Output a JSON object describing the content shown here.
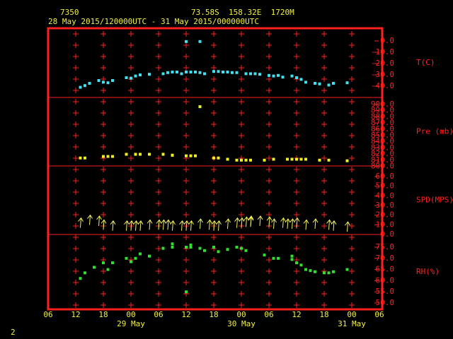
{
  "header": {
    "station": "7350",
    "location": "73.58S  158.32E  1720M",
    "period": "28 May 2015/120000UTC - 31 May 2015/000000UTC"
  },
  "page_number": "2",
  "chart_data": [
    {
      "type": "scatter",
      "ylabel": "T(C)",
      "color": "#40e0f0",
      "x": [
        13,
        14,
        15,
        17,
        18,
        19,
        20,
        23,
        24,
        25,
        26,
        28,
        31,
        32,
        33,
        34,
        35,
        36,
        36,
        37,
        38,
        39,
        39,
        40,
        42,
        43,
        44,
        45,
        46,
        47,
        49,
        50,
        51,
        52,
        54,
        55,
        56,
        57,
        59,
        60,
        61,
        62,
        64,
        65,
        67,
        68,
        71
      ],
      "values": [
        -41,
        -39.5,
        -37.5,
        -35,
        -36.5,
        -37,
        -35,
        -32.5,
        -33,
        -31,
        -30,
        -29.5,
        -29,
        -28,
        -27.5,
        -27.5,
        -29,
        -27.5,
        -0.5,
        -27.5,
        -27.5,
        -0.5,
        -28,
        -29,
        -27,
        -27,
        -27.5,
        -27.5,
        -28,
        -28,
        -29,
        -29,
        -29,
        -29.5,
        -30.5,
        -31,
        -30.5,
        -32,
        -31,
        -32.5,
        -34,
        -36.5,
        -37.5,
        -38,
        -39,
        -37.5,
        -37
      ],
      "ylim": [
        -50,
        11.25
      ],
      "yticks": [
        {
          "value": 0,
          "label": "0.0"
        },
        {
          "value": -10,
          "label": "-10.0"
        },
        {
          "value": -20,
          "label": "-20.0"
        },
        {
          "value": -30,
          "label": "-30.0"
        },
        {
          "value": -40,
          "label": "-40.0"
        }
      ]
    },
    {
      "type": "scatter",
      "ylabel": "Pre (mb)",
      "color": "#f0f020",
      "x": [
        13,
        14,
        18,
        19,
        20,
        23,
        25,
        25,
        26,
        28,
        31,
        31,
        33,
        33,
        36,
        37,
        38,
        39,
        42,
        43,
        45,
        47,
        48,
        49,
        50,
        53,
        55,
        58,
        59,
        60,
        61,
        62,
        65,
        67,
        71
      ],
      "values": [
        813.5,
        813.5,
        816,
        816,
        816,
        819.5,
        819.5,
        819.5,
        819.5,
        819.5,
        819.5,
        819.5,
        818,
        818,
        817,
        817,
        817,
        896.5,
        813.5,
        813.5,
        811.5,
        810,
        810,
        810,
        810,
        810,
        811.5,
        811.5,
        811.5,
        811.5,
        811.5,
        811.5,
        810,
        810,
        809
      ],
      "ylim": [
        800.6,
        911.4
      ],
      "yticks": [
        {
          "value": 900,
          "label": "900.0"
        },
        {
          "value": 890,
          "label": "890.0"
        },
        {
          "value": 880,
          "label": "880.0"
        },
        {
          "value": 870,
          "label": "870.0"
        },
        {
          "value": 860,
          "label": "860.0"
        },
        {
          "value": 850,
          "label": "850.0"
        },
        {
          "value": 840,
          "label": "840.0"
        },
        {
          "value": 830,
          "label": "830.0"
        },
        {
          "value": 820,
          "label": "820.0"
        },
        {
          "value": 810,
          "label": "810.0"
        },
        {
          "value": 800,
          "label": "800.0"
        }
      ]
    },
    {
      "type": "arrow",
      "ylabel": "SPD(MPS)",
      "color": "#f0f060",
      "x": [
        13,
        15,
        17,
        18,
        20,
        23,
        24,
        25,
        26,
        28,
        30,
        31,
        32,
        33,
        35,
        36,
        37,
        39,
        41,
        42,
        43,
        45,
        47,
        48,
        49,
        50,
        50,
        52,
        54,
        55,
        57,
        58,
        59,
        60,
        62,
        64,
        67,
        68,
        71
      ],
      "values": [
        12,
        15,
        14,
        10,
        9,
        9,
        9,
        9,
        9,
        10,
        10,
        10,
        10,
        9,
        9,
        9,
        9,
        11,
        10,
        9,
        9,
        11,
        12,
        12,
        13,
        14,
        13,
        14,
        13,
        11,
        12,
        11,
        11,
        12,
        10,
        11,
        10,
        9,
        8
      ],
      "ylim": [
        0,
        71
      ],
      "yticks": [
        {
          "value": 60,
          "label": "60.0"
        },
        {
          "value": 50,
          "label": "50.0"
        },
        {
          "value": 40,
          "label": "40.0"
        },
        {
          "value": 30,
          "label": "30.0"
        },
        {
          "value": 20,
          "label": "20.0"
        },
        {
          "value": 10,
          "label": "10.0"
        },
        {
          "value": 0,
          "label": "0.0"
        }
      ]
    },
    {
      "type": "scatter",
      "ylabel": "RH(%)",
      "color": "#30e030",
      "x": [
        13,
        14,
        16,
        18,
        19,
        20,
        23,
        24,
        25,
        26,
        28,
        31,
        31,
        33,
        33,
        36,
        36,
        37,
        37,
        39,
        40,
        42,
        43,
        45,
        47,
        48,
        49,
        53,
        55,
        56,
        59,
        59,
        60,
        61,
        62,
        63,
        64,
        66,
        67,
        68,
        71
      ],
      "values": [
        61,
        63.5,
        66,
        68,
        65,
        68,
        70,
        68.5,
        70,
        72,
        71,
        74.5,
        74.5,
        76.5,
        75,
        75,
        55,
        75,
        76,
        74.5,
        73.5,
        75,
        73,
        74,
        75,
        74.5,
        73.5,
        71.5,
        70,
        70,
        71,
        69.5,
        68,
        67,
        65,
        64.5,
        64,
        63.5,
        63.5,
        64,
        65
      ],
      "ylim": [
        47.15,
        80.7
      ],
      "yticks": [
        {
          "value": 75,
          "label": "75.0"
        },
        {
          "value": 70,
          "label": "70.0"
        },
        {
          "value": 65,
          "label": "65.0"
        },
        {
          "value": 60,
          "label": "60.0"
        },
        {
          "value": 55,
          "label": "55.0"
        },
        {
          "value": 50,
          "label": "50.0"
        }
      ],
      "xlim": [
        6,
        78
      ],
      "xticks": [
        {
          "value": 6,
          "label": "06"
        },
        12,
        18,
        {
          "value": 24,
          "label": "00"
        },
        {
          "value": 30,
          "label": "06"
        },
        {
          "value": 36,
          "label": "12"
        },
        {
          "value": 42,
          "label": "18"
        },
        {
          "value": 48,
          "label": "00"
        },
        {
          "value": 54,
          "label": "06"
        },
        {
          "value": 60,
          "label": "12"
        },
        {
          "value": 66,
          "label": "18"
        },
        {
          "value": 72,
          "label": "00"
        },
        {
          "value": 78,
          "label": "06"
        }
      ],
      "date_labels": [
        {
          "value": 24,
          "label": "29 May"
        },
        {
          "value": 48,
          "label": "30 May"
        },
        {
          "value": 72,
          "label": "31 May"
        }
      ]
    }
  ]
}
